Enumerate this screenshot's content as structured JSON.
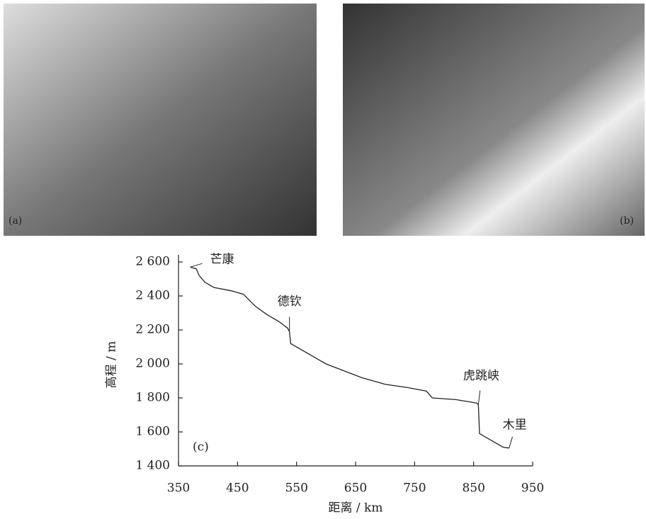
{
  "panels": [
    {
      "label": "(a)"
    },
    {
      "label": "(b)"
    }
  ],
  "chart_data": {
    "type": "line",
    "panel_label": "(c)",
    "x_label": "距离 / km",
    "y_label": "高程 / m",
    "xlim": [
      350,
      950
    ],
    "xticks": [
      350,
      450,
      550,
      650,
      750,
      850,
      950
    ],
    "ylim": [
      1400,
      2600
    ],
    "yticks": [
      {
        "value": 1400,
        "label": "1 400"
      },
      {
        "value": 1600,
        "label": "1 600"
      },
      {
        "value": 1800,
        "label": "1 800"
      },
      {
        "value": 2000,
        "label": "2 000"
      },
      {
        "value": 2200,
        "label": "2 200"
      },
      {
        "value": 2400,
        "label": "2 400"
      },
      {
        "value": 2600,
        "label": "2 600"
      }
    ],
    "x": [
      370,
      380,
      385,
      395,
      410,
      440,
      460,
      480,
      500,
      520,
      535,
      538,
      540,
      560,
      580,
      600,
      630,
      660,
      700,
      740,
      770,
      780,
      820,
      855,
      858,
      860,
      870,
      885,
      900,
      910
    ],
    "series": [
      {
        "color": "#222222",
        "values": [
          2570,
          2560,
          2520,
          2480,
          2450,
          2430,
          2410,
          2340,
          2290,
          2250,
          2210,
          2190,
          2120,
          2080,
          2040,
          2000,
          1960,
          1920,
          1880,
          1860,
          1840,
          1800,
          1790,
          1770,
          1760,
          1590,
          1570,
          1540,
          1510,
          1505
        ]
      }
    ],
    "annotations": [
      {
        "text": "芒康",
        "x": 370,
        "y": 2570
      },
      {
        "text": "德钦",
        "x": 538,
        "y": 2190
      },
      {
        "text": "虎跳峡",
        "x": 858,
        "y": 1760
      },
      {
        "text": "木里",
        "x": 910,
        "y": 1505
      }
    ]
  }
}
